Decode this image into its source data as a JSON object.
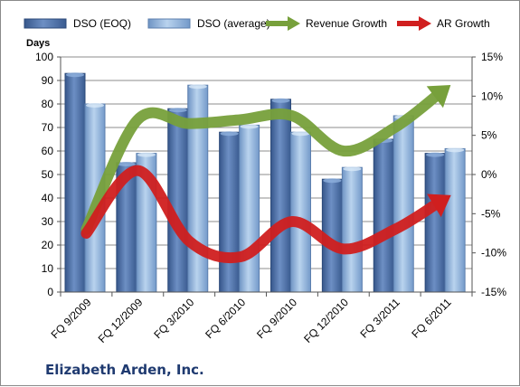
{
  "chart_data": {
    "type": "bar",
    "company": "Elizabeth Arden, Inc.",
    "ylabel": "Days",
    "ylim": [
      0,
      100
    ],
    "yticks": [
      "100",
      "90",
      "80",
      "70",
      "60",
      "50",
      "40",
      "30",
      "20",
      "10",
      "0"
    ],
    "y2lim": [
      -15,
      15
    ],
    "y2ticks": [
      "15%",
      "10%",
      "5%",
      "0%",
      "-5%",
      "-10%",
      "-15%"
    ],
    "categories": [
      "FQ 9/2009",
      "FQ 12/2009",
      "FQ 3/2010",
      "FQ 6/2010",
      "FQ 9/2010",
      "FQ 12/2010",
      "FQ 3/2011",
      "FQ 6/2011"
    ],
    "series": [
      {
        "name": "DSO (EOQ)",
        "kind": "bar",
        "axis": "left",
        "color": "#4f6fa3",
        "values": [
          93,
          55,
          78,
          68,
          82,
          48,
          65,
          59
        ]
      },
      {
        "name": "DSO (average)",
        "kind": "bar",
        "axis": "left",
        "color": "#8fb2d9",
        "values": [
          80,
          59,
          88,
          71,
          68,
          53,
          75,
          61
        ]
      },
      {
        "name": "Revenue Growth",
        "kind": "arrow",
        "axis": "right",
        "color": "#77a03b",
        "values": [
          -7,
          7,
          6.5,
          7,
          7.5,
          3,
          6,
          11
        ]
      },
      {
        "name": "AR Growth",
        "kind": "arrow",
        "axis": "right",
        "color": "#d01f1f",
        "values": [
          -7.5,
          0.5,
          -8.5,
          -10.5,
          -6,
          -9.5,
          -7,
          -3
        ]
      }
    ],
    "legend": "top",
    "grid": true
  }
}
